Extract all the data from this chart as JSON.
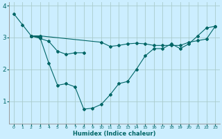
{
  "background_color": "#cceeff",
  "grid_color": "#aacccc",
  "line_color": "#006666",
  "xlabel": "Humidex (Indice chaleur)",
  "xlim": [
    -0.5,
    23.5
  ],
  "ylim": [
    0.3,
    4.1
  ],
  "yticks": [
    1,
    2,
    3,
    4
  ],
  "xticks": [
    0,
    1,
    2,
    3,
    4,
    5,
    6,
    7,
    8,
    9,
    10,
    11,
    12,
    13,
    14,
    15,
    16,
    17,
    18,
    19,
    20,
    21,
    22,
    23
  ],
  "series": [
    {
      "x": [
        0,
        1,
        2,
        3,
        4,
        5,
        6,
        7,
        8,
        9,
        10,
        11,
        12,
        13,
        14,
        15,
        16,
        17,
        18,
        19,
        20,
        21,
        22,
        23
      ],
      "y": [
        3.75,
        3.4,
        3.05,
        3.0,
        2.2,
        1.5,
        1.55,
        1.45,
        0.75,
        0.78,
        0.9,
        1.2,
        1.55,
        1.62,
        2.0,
        2.42,
        2.65,
        2.65,
        2.8,
        2.65,
        2.8,
        3.05,
        3.3,
        3.35
      ]
    },
    {
      "x": [
        2,
        3,
        4,
        5,
        6,
        7,
        8
      ],
      "y": [
        3.05,
        2.97,
        2.88,
        2.57,
        2.47,
        2.52,
        2.52
      ]
    },
    {
      "x": [
        2,
        3,
        10,
        11,
        12,
        13,
        14,
        15,
        16,
        17,
        18,
        19,
        20,
        21,
        22,
        23
      ],
      "y": [
        3.05,
        3.05,
        2.85,
        2.72,
        2.75,
        2.8,
        2.82,
        2.8,
        2.75,
        2.75,
        2.75,
        2.75,
        2.85,
        2.9,
        2.95,
        3.35
      ]
    },
    {
      "x": [
        2,
        3
      ],
      "y": [
        3.05,
        3.05
      ]
    }
  ]
}
